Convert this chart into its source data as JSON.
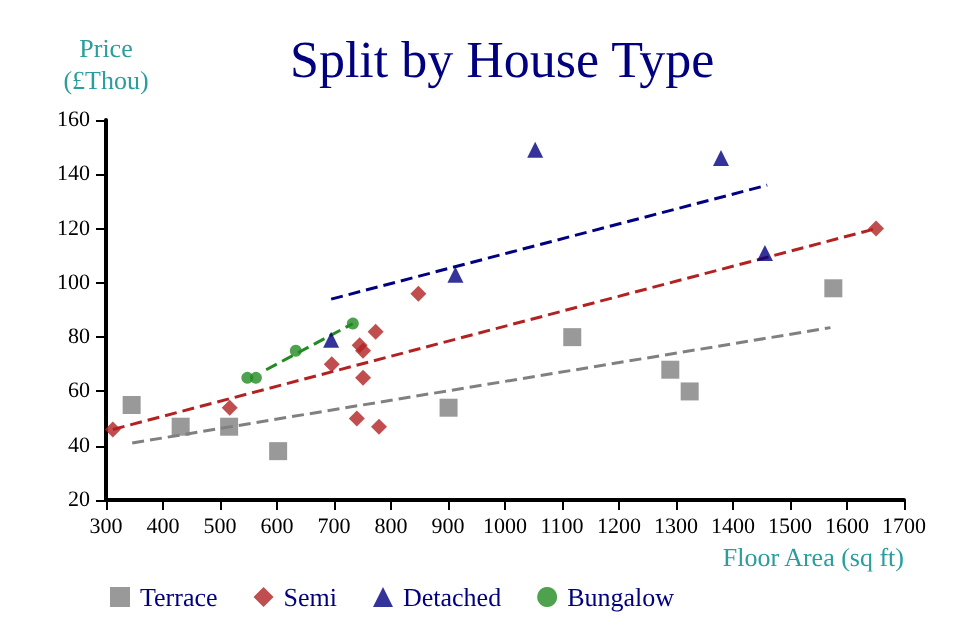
{
  "chart_data": {
    "type": "scatter",
    "title": "Split by House Type",
    "xlabel": "Floor Area (sq ft)",
    "ylabel": "Price\n(£Thou)",
    "xlim": [
      300,
      1700
    ],
    "xticks": [
      300,
      400,
      500,
      600,
      700,
      800,
      900,
      1000,
      1100,
      1200,
      1300,
      1400,
      1500,
      1600,
      1700
    ],
    "ylim": [
      20,
      160
    ],
    "yticks": [
      20,
      40,
      60,
      80,
      100,
      120,
      140,
      160
    ],
    "grid": false,
    "legend": "bottom",
    "series": [
      {
        "name": "Terrace",
        "color": "#808080",
        "marker": "square",
        "x": [
          345,
          431,
          516,
          602,
          901,
          1118,
          1290,
          1324,
          1576
        ],
        "values": [
          55,
          47,
          47,
          38,
          54,
          80,
          68,
          60,
          98
        ]
      },
      {
        "name": "Semi",
        "color": "#b22222",
        "marker": "diamond",
        "x": [
          312,
          517,
          696,
          740,
          745,
          751,
          751,
          773,
          779,
          848,
          1651
        ],
        "values": [
          46,
          54,
          70,
          50,
          77,
          75,
          65,
          82,
          47,
          96,
          120
        ]
      },
      {
        "name": "Detached",
        "color": "#000080",
        "marker": "triangle",
        "x": [
          695,
          913,
          1053,
          1379,
          1456
        ],
        "values": [
          79,
          103,
          149,
          146,
          111
        ]
      },
      {
        "name": "Bungalow",
        "color": "#228b22",
        "marker": "circle",
        "x": [
          548,
          563,
          633,
          733
        ],
        "values": [
          65,
          65,
          75,
          85
        ]
      },
      {
        "type": "line",
        "color": "#808080",
        "marker": "none",
        "line_style": "dashed",
        "x": [
          346,
          1571
        ],
        "values": [
          41,
          83.5
        ]
      },
      {
        "type": "line",
        "color": "#b22222",
        "marker": "none",
        "line_style": "dashed",
        "x": [
          312,
          1651
        ],
        "values": [
          46,
          120
        ]
      },
      {
        "type": "line",
        "color": "#000080",
        "marker": "none",
        "line_style": "dashed",
        "x": [
          695,
          1460
        ],
        "values": [
          94,
          136
        ]
      },
      {
        "type": "line",
        "color": "#228b22",
        "marker": "none",
        "line_style": "dashed",
        "x": [
          581,
          733
        ],
        "values": [
          68,
          85
        ]
      }
    ]
  }
}
